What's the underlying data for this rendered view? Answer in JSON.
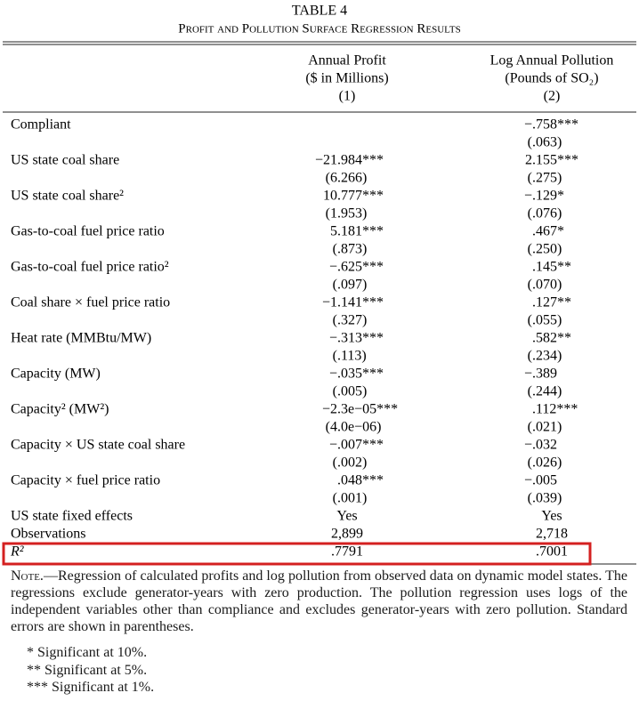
{
  "header": {
    "title": "TABLE 4",
    "subtitle": "Profit and Pollution Surface Regression Results"
  },
  "columns": [
    {
      "title": "Annual Profit",
      "unit": "($ in Millions)",
      "number": "(1)"
    },
    {
      "title": "Log Annual Pollution",
      "unit": "(Pounds of SO₂)",
      "number": "(2)"
    }
  ],
  "rows": [
    {
      "label": "Compliant",
      "values": [
        null,
        "−.758***"
      ],
      "se": [
        null,
        "(.063)"
      ]
    },
    {
      "label": "US state coal share",
      "values": [
        "−21.984***",
        "2.155***"
      ],
      "se": [
        "(6.266)",
        "(.275)"
      ]
    },
    {
      "label": "US state coal share²",
      "values": [
        "10.777***",
        "−.129*"
      ],
      "se": [
        "(1.953)",
        "(.076)"
      ]
    },
    {
      "label": "Gas-to-coal fuel price ratio",
      "values": [
        "5.181***",
        ".467*"
      ],
      "se": [
        "(.873)",
        "(.250)"
      ]
    },
    {
      "label": "Gas-to-coal fuel price ratio²",
      "values": [
        "−.625***",
        ".145**"
      ],
      "se": [
        "(.097)",
        "(.070)"
      ]
    },
    {
      "label": "Coal share × fuel price ratio",
      "values": [
        "−1.141***",
        ".127**"
      ],
      "se": [
        "(.327)",
        "(.055)"
      ]
    },
    {
      "label": "Heat rate (MMBtu/MW)",
      "values": [
        "−.313***",
        ".582**"
      ],
      "se": [
        "(.113)",
        "(.234)"
      ]
    },
    {
      "label": "Capacity (MW)",
      "values": [
        "−.035***",
        "−.389"
      ],
      "se": [
        "(.005)",
        "(.244)"
      ]
    },
    {
      "label": "Capacity² (MW²)",
      "values": [
        "−2.3e−05***",
        ".112***"
      ],
      "se": [
        "(4.0e−06)",
        "(.021)"
      ]
    },
    {
      "label": "Capacity × US state coal share",
      "values": [
        "−.007***",
        "−.032"
      ],
      "se": [
        "(.002)",
        "(.026)"
      ]
    },
    {
      "label": "Capacity × fuel price ratio",
      "values": [
        ".048***",
        "−.005"
      ],
      "se": [
        "(.001)",
        "(.039)"
      ]
    },
    {
      "label": "US state fixed effects",
      "values": [
        "Yes",
        "Yes"
      ]
    },
    {
      "label": "Observations",
      "values": [
        "2,899",
        "2,718"
      ]
    },
    {
      "label": "R²",
      "values": [
        ".7791",
        ".7001"
      ]
    }
  ],
  "note": {
    "label": "Note.",
    "text": "—Regression of calculated profits and log pollution from observed data on dynamic model states. The regressions exclude generator-years with zero production. The pollution regression uses logs of the independent variables other than compliance and excludes generator-years with zero pollution. Standard errors are shown in parentheses."
  },
  "footnotes": [
    "* Significant at 10%.",
    "** Significant at 5%.",
    "*** Significant at 1%."
  ]
}
